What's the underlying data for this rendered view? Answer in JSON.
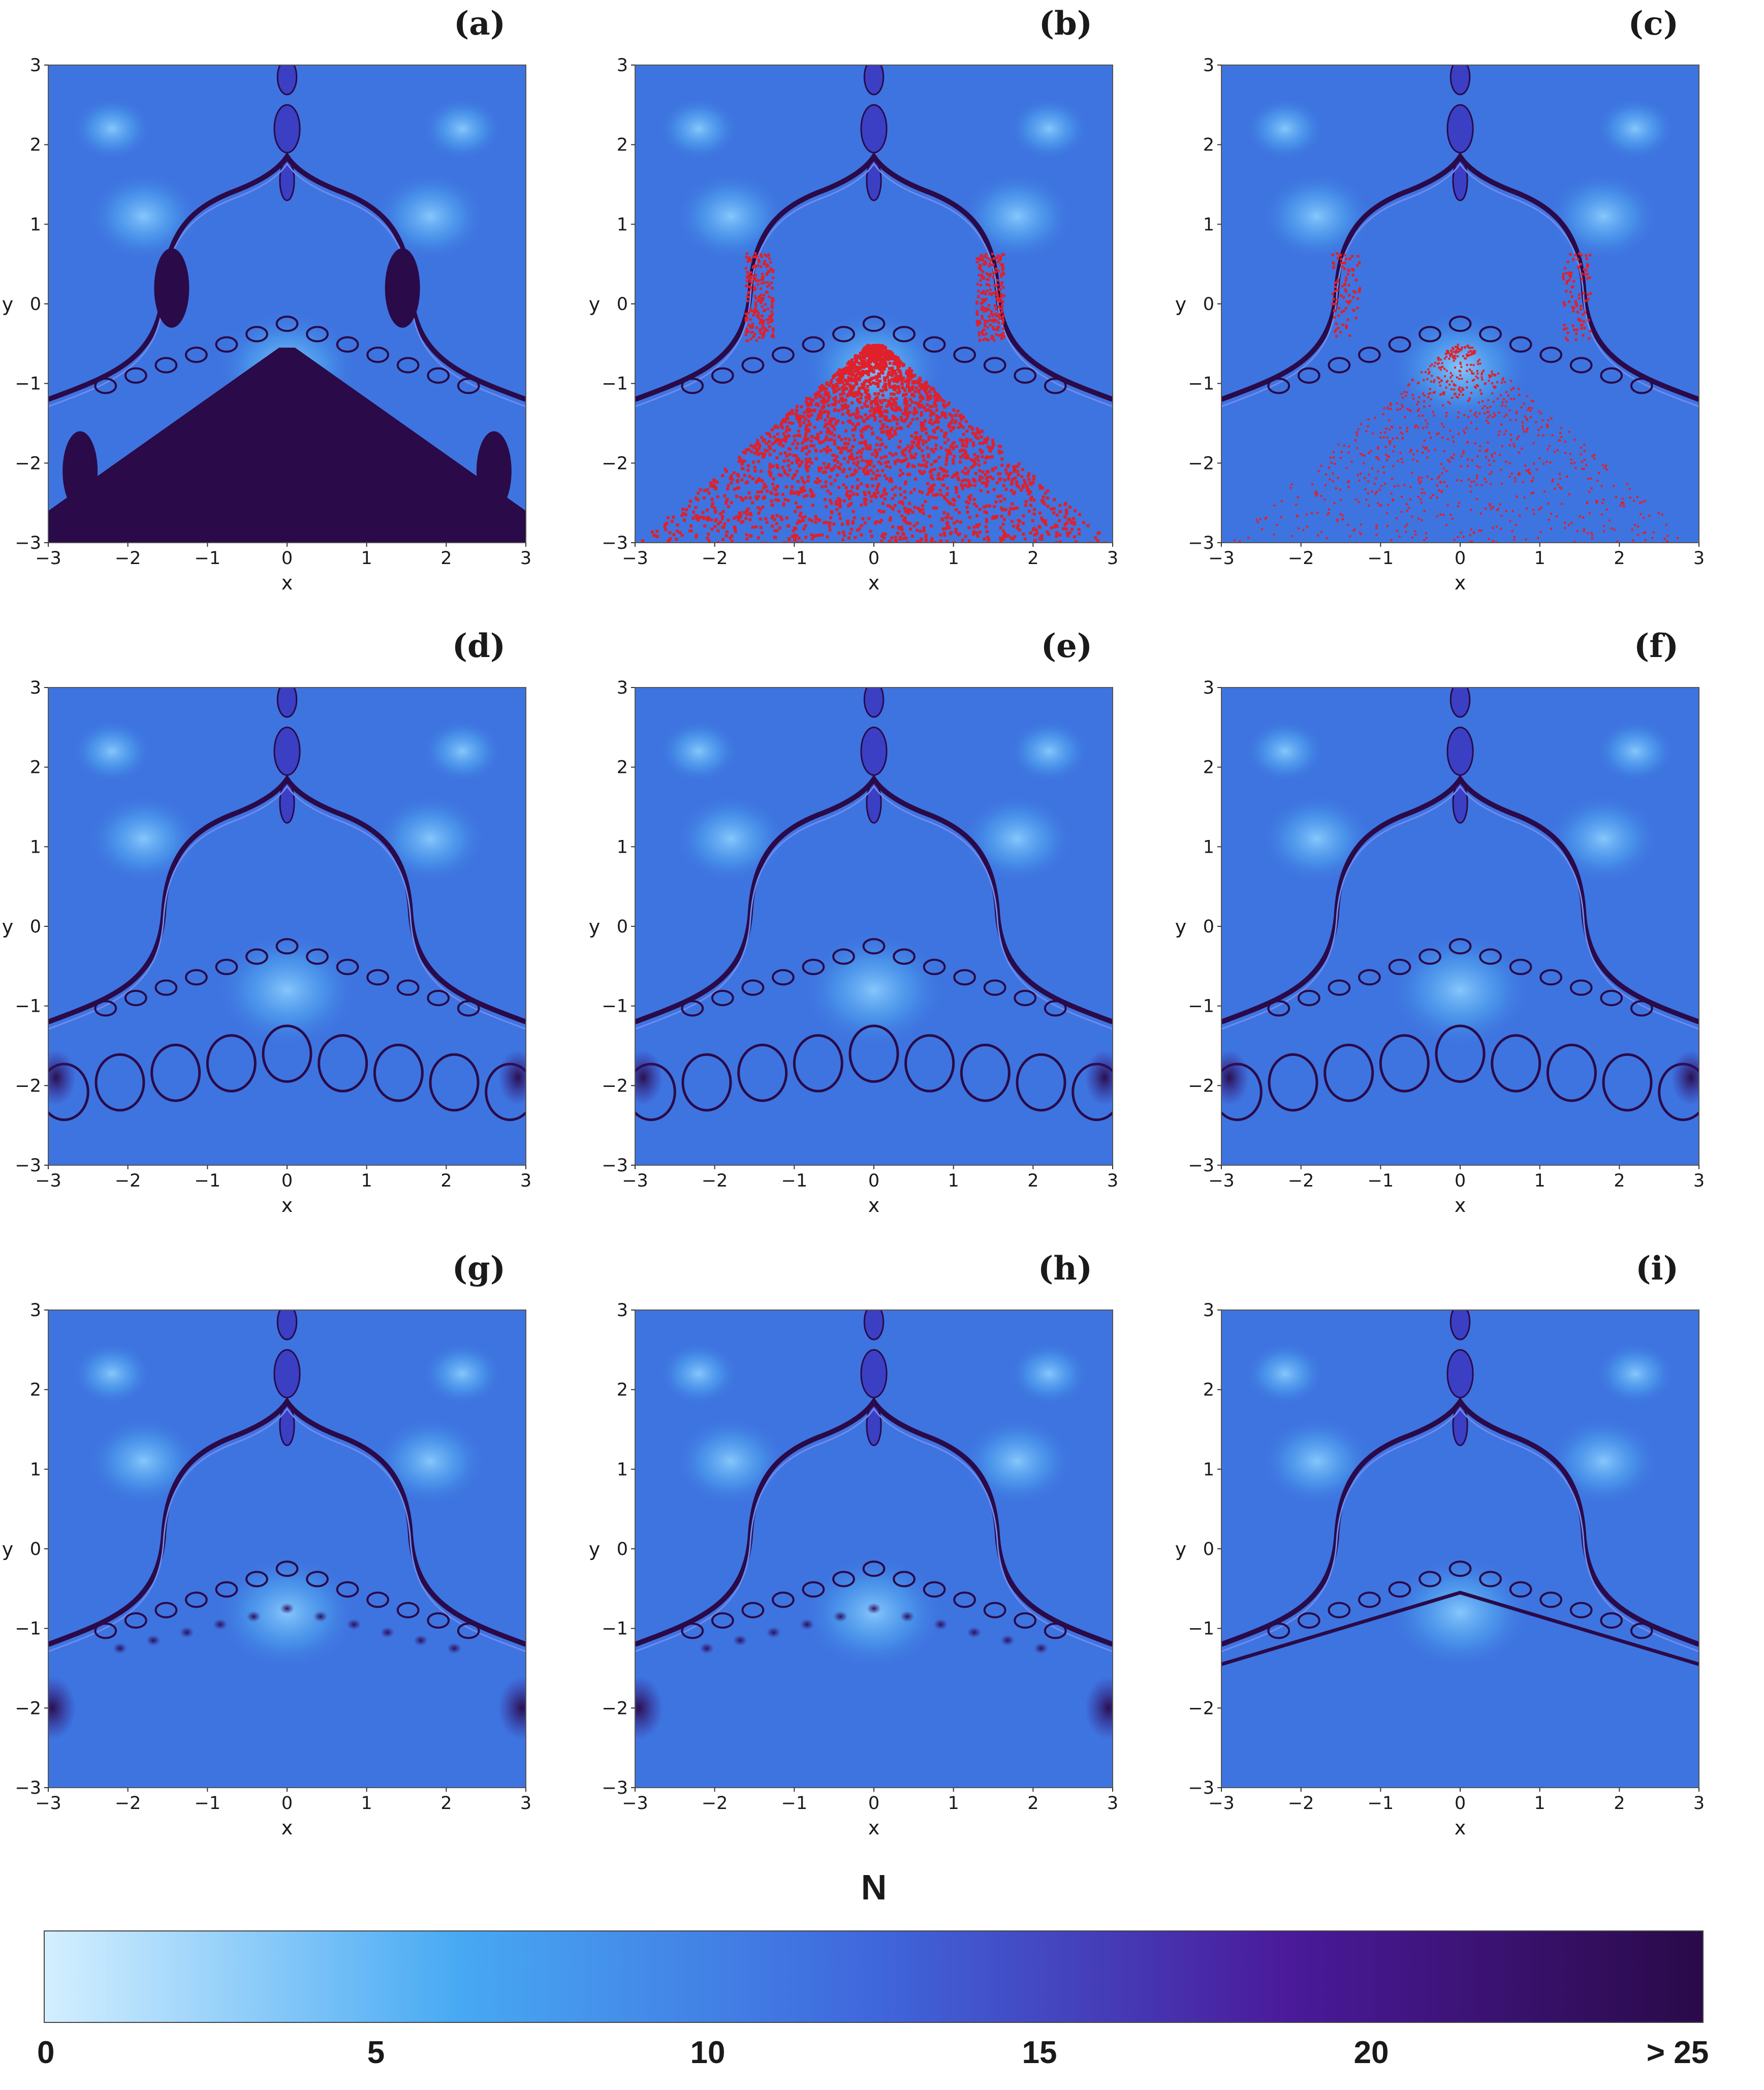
{
  "colors": {
    "scale": [
      "#d4efff",
      "#47a9f3",
      "#3f67dc",
      "#4a1a9a",
      "#2a0a48"
    ],
    "background": "#3e74e0",
    "dark": "#2a0a48",
    "red_noise": "#e0202a"
  },
  "chart_data": [
    {
      "type": "heatmap",
      "label": "(a)",
      "xlabel": "x",
      "ylabel": "y",
      "xlim": [
        -3,
        3
      ],
      "ylim": [
        -3,
        3
      ],
      "x_ticks": [
        -3,
        -2,
        -1,
        0,
        1,
        2,
        3
      ],
      "y_ticks": [
        -3,
        -2,
        -1,
        0,
        1,
        2,
        3
      ],
      "tick_labels": [
        "−3",
        "−2",
        "−1",
        "0",
        "1",
        "2",
        "3"
      ],
      "variant": "dark_basin"
    },
    {
      "type": "heatmap",
      "label": "(b)",
      "xlabel": "x",
      "ylabel": "y",
      "xlim": [
        -3,
        3
      ],
      "ylim": [
        -3,
        3
      ],
      "x_ticks": [
        -3,
        -2,
        -1,
        0,
        1,
        2,
        3
      ],
      "y_ticks": [
        -3,
        -2,
        -1,
        0,
        1,
        2,
        3
      ],
      "tick_labels": [
        "−3",
        "−2",
        "−1",
        "0",
        "1",
        "2",
        "3"
      ],
      "variant": "red_noise_dense"
    },
    {
      "type": "heatmap",
      "label": "(c)",
      "xlabel": "x",
      "ylabel": "y",
      "xlim": [
        -3,
        3
      ],
      "ylim": [
        -3,
        3
      ],
      "x_ticks": [
        -3,
        -2,
        -1,
        0,
        1,
        2,
        3
      ],
      "y_ticks": [
        -3,
        -2,
        -1,
        0,
        1,
        2,
        3
      ],
      "tick_labels": [
        "−3",
        "−2",
        "−1",
        "0",
        "1",
        "2",
        "3"
      ],
      "variant": "red_noise_sparse"
    },
    {
      "type": "heatmap",
      "label": "(d)",
      "xlabel": "x",
      "ylabel": "y",
      "xlim": [
        -3,
        3
      ],
      "ylim": [
        -3,
        3
      ],
      "x_ticks": [
        -3,
        -2,
        -1,
        0,
        1,
        2,
        3
      ],
      "y_ticks": [
        -3,
        -2,
        -1,
        0,
        1,
        2,
        3
      ],
      "tick_labels": [
        "−3",
        "−2",
        "−1",
        "0",
        "1",
        "2",
        "3"
      ],
      "variant": "lobes"
    },
    {
      "type": "heatmap",
      "label": "(e)",
      "xlabel": "x",
      "ylabel": "y",
      "xlim": [
        -3,
        3
      ],
      "ylim": [
        -3,
        3
      ],
      "x_ticks": [
        -3,
        -2,
        -1,
        0,
        1,
        2,
        3
      ],
      "y_ticks": [
        -3,
        -2,
        -1,
        0,
        1,
        2,
        3
      ],
      "tick_labels": [
        "−3",
        "−2",
        "−1",
        "0",
        "1",
        "2",
        "3"
      ],
      "variant": "lobes"
    },
    {
      "type": "heatmap",
      "label": "(f)",
      "xlabel": "x",
      "ylabel": "y",
      "xlim": [
        -3,
        3
      ],
      "ylim": [
        -3,
        3
      ],
      "x_ticks": [
        -3,
        -2,
        -1,
        0,
        1,
        2,
        3
      ],
      "y_ticks": [
        -3,
        -2,
        -1,
        0,
        1,
        2,
        3
      ],
      "tick_labels": [
        "−3",
        "−2",
        "−1",
        "0",
        "1",
        "2",
        "3"
      ],
      "variant": "lobes"
    },
    {
      "type": "heatmap",
      "label": "(g)",
      "xlabel": "x",
      "ylabel": "y",
      "xlim": [
        -3,
        3
      ],
      "ylim": [
        -3,
        3
      ],
      "x_ticks": [
        -3,
        -2,
        -1,
        0,
        1,
        2,
        3
      ],
      "y_ticks": [
        -3,
        -2,
        -1,
        0,
        1,
        2,
        3
      ],
      "tick_labels": [
        "−3",
        "−2",
        "−1",
        "0",
        "1",
        "2",
        "3"
      ],
      "variant": "dots"
    },
    {
      "type": "heatmap",
      "label": "(h)",
      "xlabel": "x",
      "ylabel": "y",
      "xlim": [
        -3,
        3
      ],
      "ylim": [
        -3,
        3
      ],
      "x_ticks": [
        -3,
        -2,
        -1,
        0,
        1,
        2,
        3
      ],
      "y_ticks": [
        -3,
        -2,
        -1,
        0,
        1,
        2,
        3
      ],
      "tick_labels": [
        "−3",
        "−2",
        "−1",
        "0",
        "1",
        "2",
        "3"
      ],
      "variant": "dots"
    },
    {
      "type": "heatmap",
      "label": "(i)",
      "xlabel": "x",
      "ylabel": "y",
      "xlim": [
        -3,
        3
      ],
      "ylim": [
        -3,
        3
      ],
      "x_ticks": [
        -3,
        -2,
        -1,
        0,
        1,
        2,
        3
      ],
      "y_ticks": [
        -3,
        -2,
        -1,
        0,
        1,
        2,
        3
      ],
      "tick_labels": [
        "−3",
        "−2",
        "−1",
        "0",
        "1",
        "2",
        "3"
      ],
      "variant": "smooth"
    }
  ],
  "colorbar": {
    "title": "N",
    "range": [
      0,
      25
    ],
    "ticks": [
      0,
      5,
      10,
      15,
      20,
      25
    ],
    "tick_labels": [
      "0",
      "5",
      "10",
      "15",
      "20",
      "> 25"
    ]
  }
}
